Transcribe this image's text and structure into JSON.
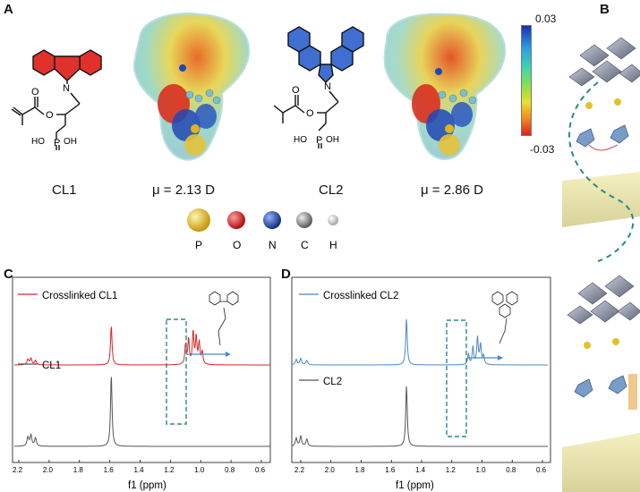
{
  "panels": {
    "a": {
      "letter": "A"
    },
    "b": {
      "letter": "B"
    },
    "c": {
      "letter": "C"
    },
    "d": {
      "letter": "D"
    }
  },
  "molecules": {
    "cl1": {
      "name": "CL1",
      "dipole": "μ = 2.13 D",
      "ring_color": "#e0312c"
    },
    "cl2": {
      "name": "CL2",
      "dipole": "μ = 2.86 D",
      "ring_color": "#3f6fd0"
    },
    "atom_labels": {
      "o": "O",
      "n": "N",
      "p": "P",
      "o2": "O",
      "ho": "HO",
      "oh": "OH"
    }
  },
  "colorbar": {
    "max": "0.03",
    "min": "-0.03"
  },
  "atom_legend": [
    {
      "symbol": "P",
      "color": "#e1b21a"
    },
    {
      "symbol": "O",
      "color": "#d61e1e"
    },
    {
      "symbol": "N",
      "color": "#1d44a8"
    },
    {
      "symbol": "C",
      "color": "#8a8a8a"
    },
    {
      "symbol": "H",
      "color": "#e6e6e6"
    }
  ],
  "colors": {
    "red_series": "#d62728",
    "blue_series": "#4a88c7",
    "gray_series": "#555555",
    "box": "#2a8a86"
  },
  "nmr_c": {
    "x_label": "f1 (ppm)",
    "ticks": [
      "2.2",
      "2.0",
      "1.8",
      "1.6",
      "1.4",
      "1.2",
      "1.0",
      "0.8",
      "0.6"
    ],
    "legend_top": "Crosslinked CL1",
    "legend_bottom": "CL1"
  },
  "nmr_d": {
    "x_label": "f1 (ppm)",
    "ticks": [
      "2.2",
      "2.0",
      "1.8",
      "1.6",
      "1.4",
      "1.2",
      "1.0",
      "0.8",
      "0.6"
    ],
    "legend_top": "Crosslinked CL2",
    "legend_bottom": "CL2"
  }
}
